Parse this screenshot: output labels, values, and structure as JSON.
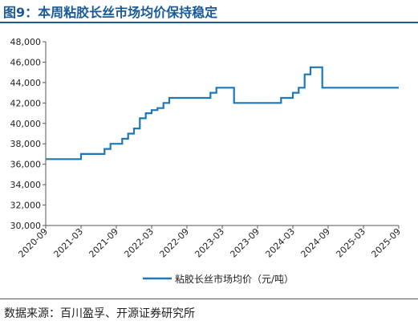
{
  "title": "图9：本周粘胶长丝市场均价保持稳定",
  "source": "数据来源：百川盈孚、开源证券研究所",
  "colors": {
    "accent": "#1a5a96",
    "line": "#1f77b4"
  },
  "chart_data": {
    "type": "line",
    "legend": "粘胶长丝市场均价（元/吨）",
    "legend_position": "bottom-center",
    "grid": false,
    "ylim": [
      30000,
      48000
    ],
    "yticks": [
      30000,
      32000,
      34000,
      36000,
      38000,
      40000,
      42000,
      44000,
      46000,
      48000
    ],
    "ytick_labels": [
      "30,000",
      "32,000",
      "34,000",
      "36,000",
      "38,000",
      "40,000",
      "42,000",
      "44,000",
      "46,000",
      "48,000"
    ],
    "xlim": [
      "2020-09",
      "2025-09"
    ],
    "xtick_labels": [
      "2020-09",
      "2021-03",
      "2021-09",
      "2022-03",
      "2022-09",
      "2023-03",
      "2023-09",
      "2024-03",
      "2024-09",
      "2025-03",
      "2025-09"
    ],
    "series": [
      {
        "name": "粘胶长丝市场均价（元/吨）",
        "step": true,
        "points": [
          [
            "2020-09",
            36500
          ],
          [
            "2021-03",
            37000
          ],
          [
            "2021-07",
            37500
          ],
          [
            "2021-08",
            38000
          ],
          [
            "2021-10",
            38500
          ],
          [
            "2021-11",
            39000
          ],
          [
            "2021-12",
            39500
          ],
          [
            "2022-01",
            40500
          ],
          [
            "2022-02",
            41000
          ],
          [
            "2022-03",
            41300
          ],
          [
            "2022-04",
            41500
          ],
          [
            "2022-05",
            42000
          ],
          [
            "2022-06",
            42500
          ],
          [
            "2023-01",
            43000
          ],
          [
            "2023-02",
            43500
          ],
          [
            "2023-05",
            42000
          ],
          [
            "2024-01",
            42500
          ],
          [
            "2024-03",
            43000
          ],
          [
            "2024-04",
            43500
          ],
          [
            "2024-05",
            44800
          ],
          [
            "2024-06",
            45500
          ],
          [
            "2024-08",
            43500
          ],
          [
            "2025-09",
            43500
          ]
        ]
      }
    ]
  }
}
